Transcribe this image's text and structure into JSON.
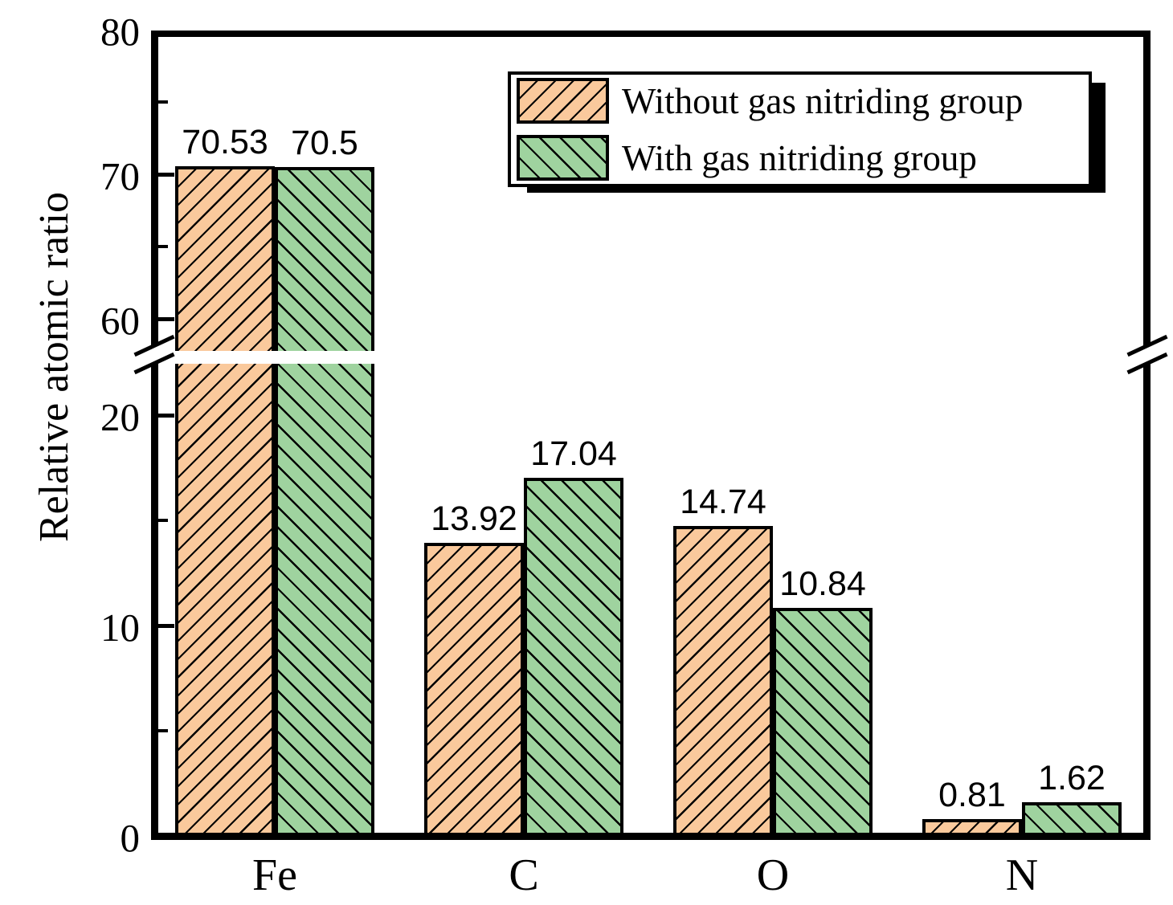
{
  "chart_data": {
    "type": "bar",
    "title": "",
    "ylabel": "Relative atomic ratio",
    "xlabel": "",
    "categories": [
      "Fe",
      "C",
      "O",
      "N"
    ],
    "series": [
      {
        "name": "Without gas nitriding group",
        "color": "#FAC99C",
        "hatch": "/",
        "values": [
          70.53,
          13.92,
          14.74,
          0.81
        ],
        "value_labels": [
          "70.53",
          "13.92",
          "14.74",
          "0.81"
        ]
      },
      {
        "name": "With gas nitriding group",
        "color": "#9FD39F",
        "hatch": "\\",
        "values": [
          70.5,
          17.04,
          10.84,
          1.62
        ],
        "value_labels": [
          "70.5",
          "17.04",
          "10.84",
          "1.62"
        ]
      }
    ],
    "y_axis": {
      "broken_axis": true,
      "lower_segment_range": [
        0,
        22
      ],
      "upper_segment_range": [
        57,
        80
      ],
      "labeled_ticks": [
        0,
        10,
        20,
        60,
        70,
        80
      ],
      "drawn_major_ticks": [
        10,
        20,
        60,
        70
      ],
      "minor_ticks": [
        5,
        15,
        65,
        75
      ]
    },
    "legend_position": "upper right",
    "grid": false,
    "bar_edge_color": "#000000",
    "background_color": "#ffffff"
  }
}
